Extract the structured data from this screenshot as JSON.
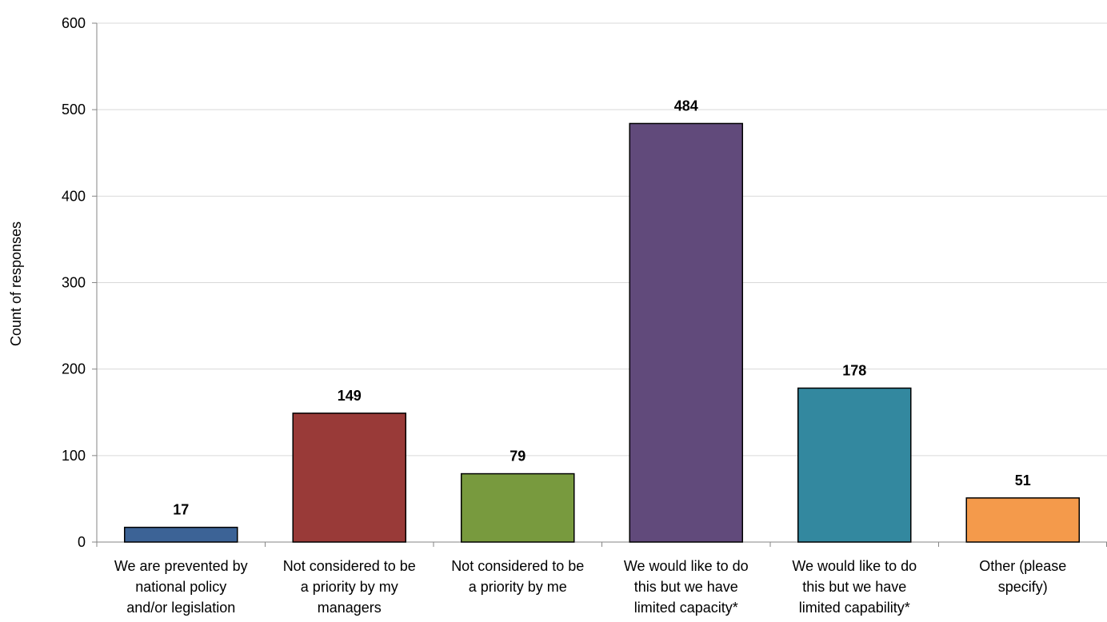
{
  "chart_data": {
    "type": "bar",
    "title": "",
    "xlabel": "",
    "ylabel": "Count of responses",
    "ylim": [
      0,
      600
    ],
    "yticks": [
      0,
      100,
      200,
      300,
      400,
      500,
      600
    ],
    "grid": true,
    "legend": "none",
    "categories": [
      [
        "We are prevented by",
        "national policy",
        "and/or legislation"
      ],
      [
        "Not considered to be",
        "a priority by my",
        "managers"
      ],
      [
        "Not considered to be",
        "a priority by me"
      ],
      [
        "We would like to do",
        "this but we have",
        "limited capacity*"
      ],
      [
        "We would like to do",
        "this but we have",
        "limited capability*"
      ],
      [
        "Other (please",
        "specify)"
      ]
    ],
    "values": [
      17,
      149,
      79,
      484,
      178,
      51
    ],
    "data_labels": [
      "17",
      "149",
      "79",
      "484",
      "178",
      "51"
    ],
    "colors": [
      "#3c6396",
      "#993a38",
      "#789a3e",
      "#614a7b",
      "#33889f",
      "#f49a4b"
    ]
  }
}
